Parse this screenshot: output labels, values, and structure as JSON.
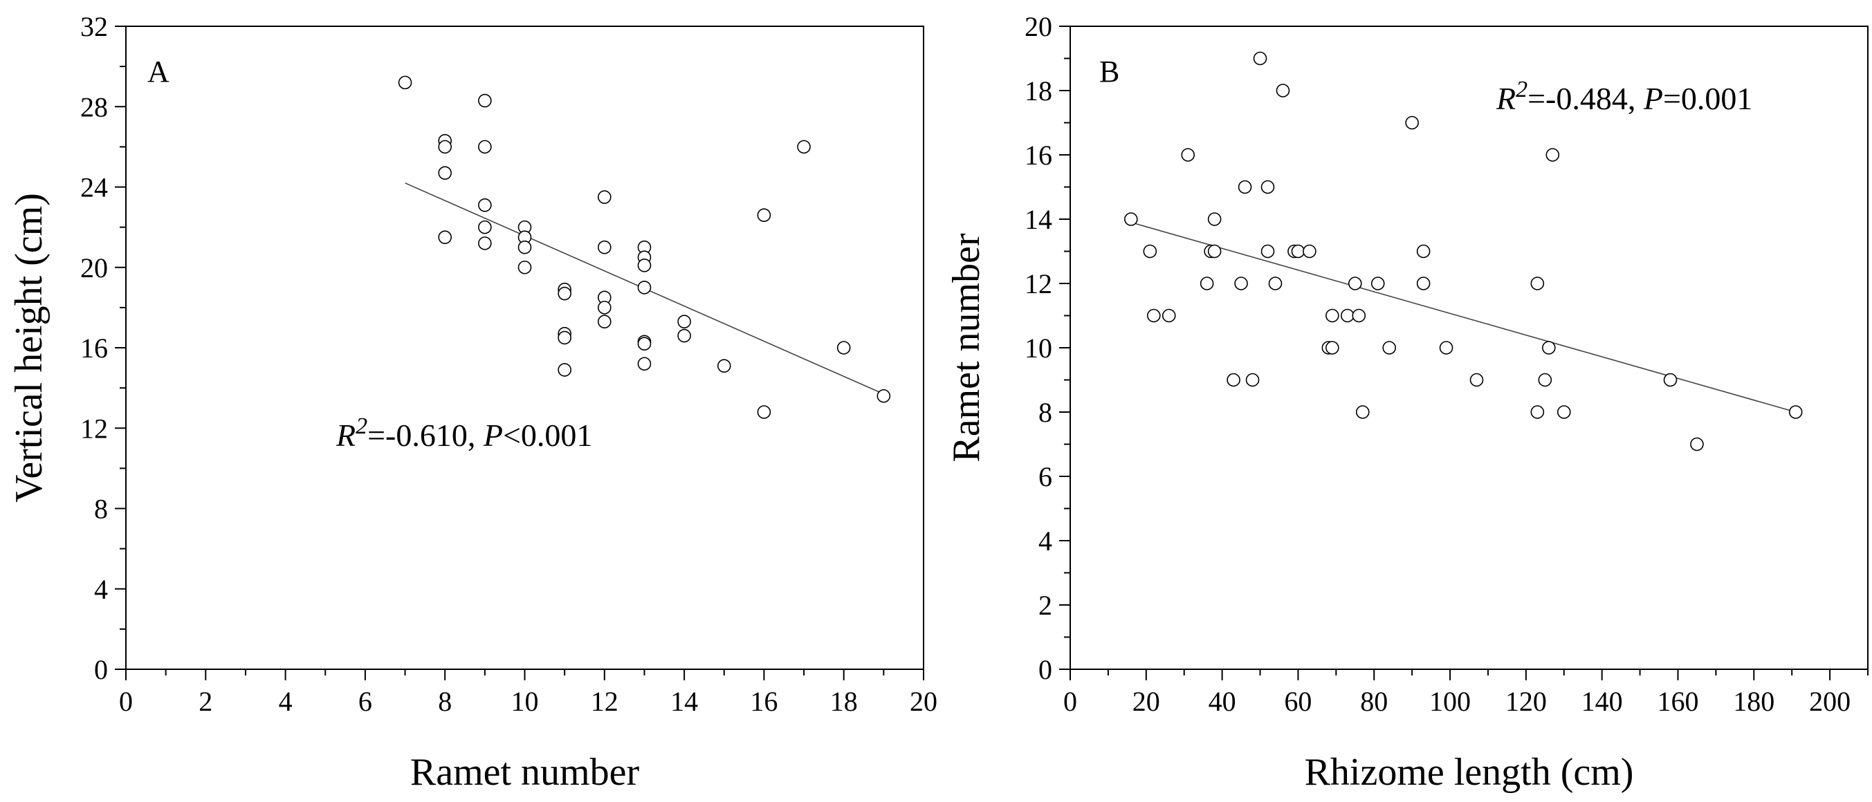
{
  "chart_data": [
    {
      "type": "scatter",
      "panel_label": "A",
      "xlabel": "Ramet number",
      "ylabel": "Vertical height (cm)",
      "xlim": [
        0,
        20
      ],
      "ylim": [
        0,
        32
      ],
      "x_ticks": [
        0,
        2,
        4,
        6,
        8,
        10,
        12,
        14,
        16,
        18,
        20
      ],
      "y_ticks": [
        0,
        4,
        8,
        12,
        16,
        20,
        24,
        28,
        32
      ],
      "grid": false,
      "marker": "open-circle",
      "annotation": {
        "r_label": "R",
        "r_sup": "2",
        "r_value": "=-0.610, ",
        "p_label": "P",
        "p_value": "<0.001"
      },
      "regression_line": {
        "x": [
          7,
          19
        ],
        "y": [
          24.2,
          13.7
        ]
      },
      "points": [
        [
          7,
          29.2
        ],
        [
          8,
          26.3
        ],
        [
          8,
          26.0
        ],
        [
          8,
          24.7
        ],
        [
          8,
          21.5
        ],
        [
          9,
          28.3
        ],
        [
          9,
          26.0
        ],
        [
          9,
          23.1
        ],
        [
          9,
          22.0
        ],
        [
          9,
          21.2
        ],
        [
          10,
          22.0
        ],
        [
          10,
          21.5
        ],
        [
          10,
          21.0
        ],
        [
          10,
          20.0
        ],
        [
          11,
          18.9
        ],
        [
          11,
          18.7
        ],
        [
          11,
          16.7
        ],
        [
          11,
          16.5
        ],
        [
          11,
          14.9
        ],
        [
          12,
          23.5
        ],
        [
          12,
          21.0
        ],
        [
          12,
          18.5
        ],
        [
          12,
          18.0
        ],
        [
          12,
          17.3
        ],
        [
          13,
          21.0
        ],
        [
          13,
          20.5
        ],
        [
          13,
          20.1
        ],
        [
          13,
          19.0
        ],
        [
          13,
          16.3
        ],
        [
          13,
          16.2
        ],
        [
          13,
          15.2
        ],
        [
          14,
          17.3
        ],
        [
          14,
          16.6
        ],
        [
          15,
          15.1
        ],
        [
          16,
          22.6
        ],
        [
          16,
          12.8
        ],
        [
          17,
          26.0
        ],
        [
          18,
          16.0
        ],
        [
          19,
          13.6
        ]
      ]
    },
    {
      "type": "scatter",
      "panel_label": "B",
      "xlabel": "Rhizome length (cm)",
      "ylabel": "Ramet number",
      "xlim": [
        0,
        210
      ],
      "ylim": [
        0,
        20
      ],
      "x_ticks": [
        0,
        20,
        40,
        60,
        80,
        100,
        120,
        140,
        160,
        180,
        200
      ],
      "y_ticks": [
        0,
        2,
        4,
        6,
        8,
        10,
        12,
        14,
        16,
        18,
        20
      ],
      "grid": false,
      "marker": "open-circle",
      "annotation": {
        "r_label": "R",
        "r_sup": "2",
        "r_value": "=-0.484, ",
        "p_label": "P",
        "p_value": "=0.001"
      },
      "regression_line": {
        "x": [
          16,
          191
        ],
        "y": [
          13.9,
          8.0
        ]
      },
      "points": [
        [
          16,
          14
        ],
        [
          21,
          13
        ],
        [
          22,
          11
        ],
        [
          26,
          11
        ],
        [
          31,
          16
        ],
        [
          36,
          12
        ],
        [
          37,
          13
        ],
        [
          38,
          13
        ],
        [
          38,
          14
        ],
        [
          43,
          9
        ],
        [
          45,
          12
        ],
        [
          46,
          15
        ],
        [
          48,
          9
        ],
        [
          50,
          19
        ],
        [
          52,
          15
        ],
        [
          52,
          13
        ],
        [
          54,
          12
        ],
        [
          56,
          18
        ],
        [
          59,
          13
        ],
        [
          60,
          13
        ],
        [
          63,
          13
        ],
        [
          68,
          10
        ],
        [
          69,
          10
        ],
        [
          69,
          11
        ],
        [
          73,
          11
        ],
        [
          75,
          12
        ],
        [
          76,
          11
        ],
        [
          77,
          8
        ],
        [
          81,
          12
        ],
        [
          84,
          10
        ],
        [
          90,
          17
        ],
        [
          93,
          12
        ],
        [
          93,
          13
        ],
        [
          99,
          10
        ],
        [
          107,
          9
        ],
        [
          123,
          12
        ],
        [
          123,
          8
        ],
        [
          125,
          9
        ],
        [
          126,
          10
        ],
        [
          127,
          16
        ],
        [
          130,
          8
        ],
        [
          158,
          9
        ],
        [
          165,
          7
        ],
        [
          191,
          8
        ]
      ]
    }
  ]
}
